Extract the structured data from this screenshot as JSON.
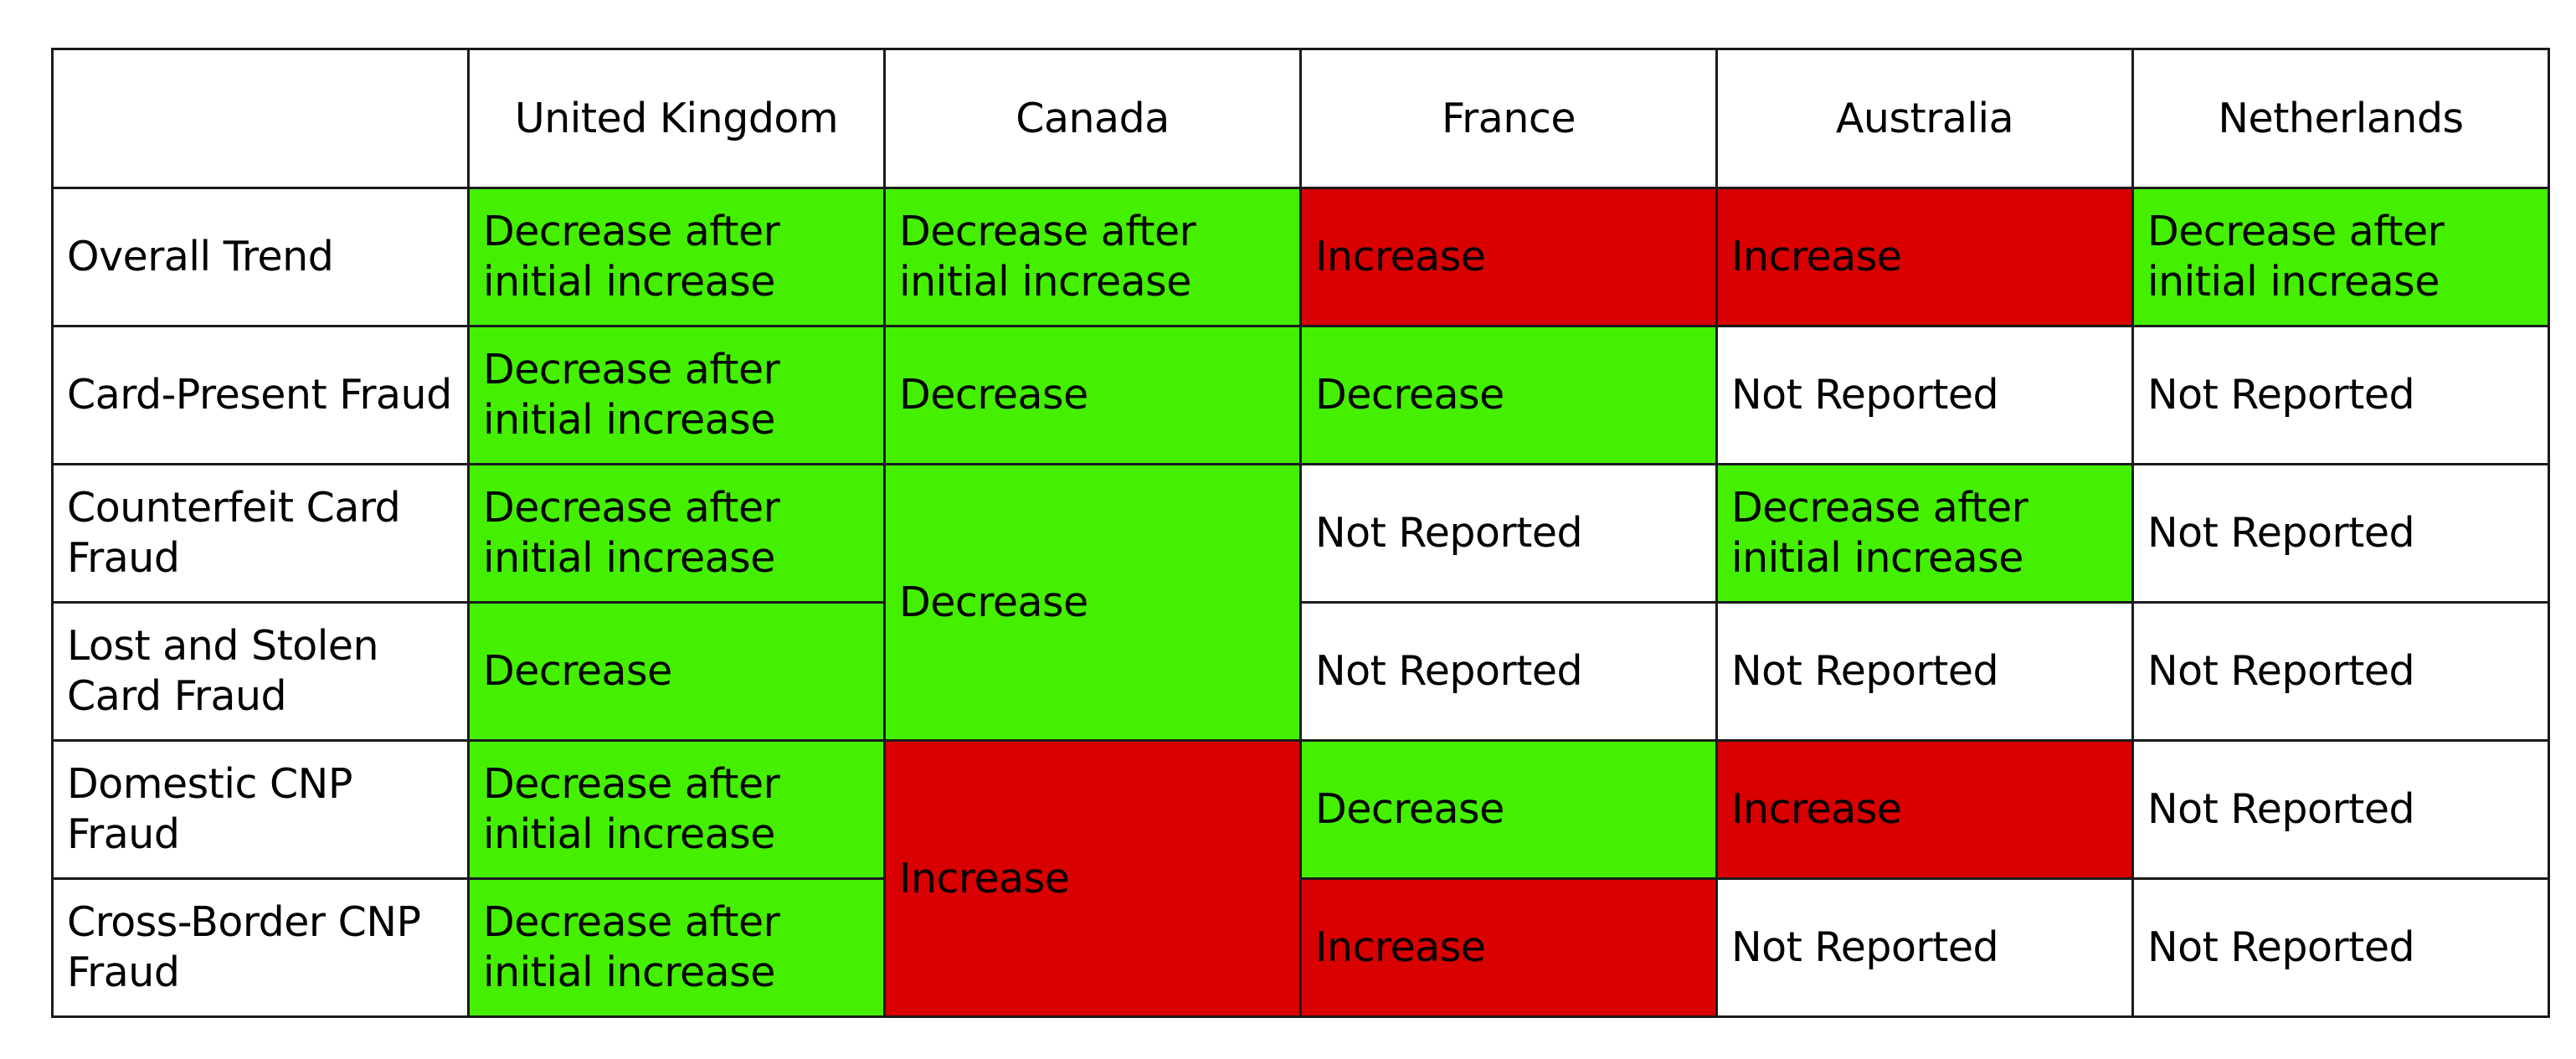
{
  "colors": {
    "decrease": "#44f000",
    "increase": "#d80000",
    "not_reported": "#ffffff",
    "border": "#1a1a1a"
  },
  "table": {
    "columns": [
      "United Kingdom",
      "Canada",
      "France",
      "Australia",
      "Netherlands"
    ],
    "row_labels": [
      "Overall Trend",
      "Card-Present Fraud",
      "Counterfeit Card Fraud",
      "Lost and Stolen Card Fraud",
      "Domestic CNP Fraud",
      "Cross-Border CNP Fraud"
    ],
    "rows": [
      {
        "label": "Overall Trend",
        "united_kingdom": "Decrease after initial increase",
        "canada": "Decrease after initial increase",
        "france": "Increase",
        "australia": "Increase",
        "netherlands": "Decrease after initial increase"
      },
      {
        "label": "Card-Present Fraud",
        "united_kingdom": "Decrease after initial increase",
        "canada": "Decrease",
        "france": "Decrease",
        "australia": "Not Reported",
        "netherlands": "Not Reported"
      },
      {
        "label": "Counterfeit Card Fraud",
        "united_kingdom": "Decrease after initial increase",
        "canada": "Decrease",
        "france": "Not Reported",
        "australia": "Decrease after initial increase",
        "netherlands": "Not Reported"
      },
      {
        "label": "Lost and Stolen Card Fraud",
        "united_kingdom": "Decrease",
        "canada": "Decrease",
        "france": "Not Reported",
        "australia": "Not Reported",
        "netherlands": "Not Reported"
      },
      {
        "label": "Domestic CNP Fraud",
        "united_kingdom": "Decrease after initial increase",
        "canada": "Increase",
        "france": "Decrease",
        "australia": "Increase",
        "netherlands": "Not Reported"
      },
      {
        "label": "Cross-Border CNP Fraud",
        "united_kingdom": "Decrease after initial increase",
        "canada": "Increase",
        "france": "Increase",
        "australia": "Not Reported",
        "netherlands": "Not Reported"
      }
    ],
    "merged_cells": [
      {
        "column": "Canada",
        "rows": [
          "Counterfeit Card Fraud",
          "Lost and Stolen Card Fraud"
        ],
        "value": "Decrease"
      },
      {
        "column": "Canada",
        "rows": [
          "Domestic CNP Fraud",
          "Cross-Border CNP Fraud"
        ],
        "value": "Increase"
      }
    ]
  }
}
